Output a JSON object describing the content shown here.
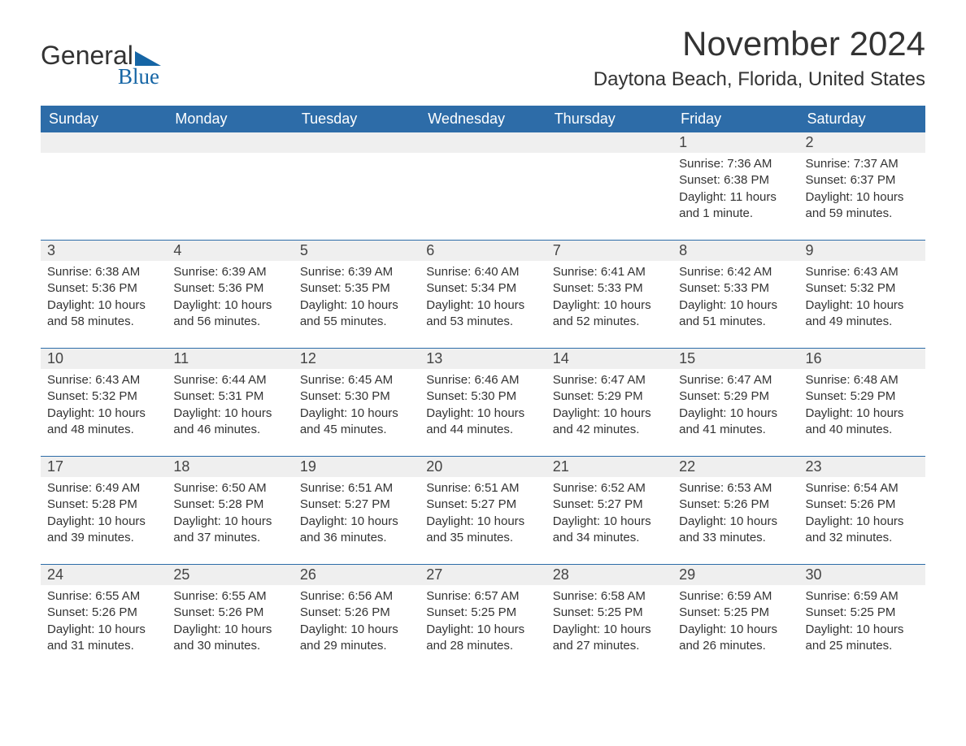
{
  "logo": {
    "word1": "General",
    "word2": "Blue"
  },
  "title": "November 2024",
  "location": "Daytona Beach, Florida, United States",
  "colors": {
    "header_bg": "#2d6ca8",
    "header_text": "#ffffff",
    "daynum_bg": "#efefef",
    "row_border": "#2d6ca8",
    "logo_accent": "#1565a5",
    "body_text": "#333333",
    "page_bg": "#ffffff"
  },
  "typography": {
    "title_fontsize": 42,
    "location_fontsize": 24,
    "dayheader_fontsize": 18,
    "daynum_fontsize": 18,
    "body_fontsize": 15,
    "font_family": "Arial"
  },
  "day_names": [
    "Sunday",
    "Monday",
    "Tuesday",
    "Wednesday",
    "Thursday",
    "Friday",
    "Saturday"
  ],
  "weeks": [
    [
      {
        "num": "",
        "sunrise": "",
        "sunset": "",
        "daylight": ""
      },
      {
        "num": "",
        "sunrise": "",
        "sunset": "",
        "daylight": ""
      },
      {
        "num": "",
        "sunrise": "",
        "sunset": "",
        "daylight": ""
      },
      {
        "num": "",
        "sunrise": "",
        "sunset": "",
        "daylight": ""
      },
      {
        "num": "",
        "sunrise": "",
        "sunset": "",
        "daylight": ""
      },
      {
        "num": "1",
        "sunrise": "Sunrise: 7:36 AM",
        "sunset": "Sunset: 6:38 PM",
        "daylight": "Daylight: 11 hours and 1 minute."
      },
      {
        "num": "2",
        "sunrise": "Sunrise: 7:37 AM",
        "sunset": "Sunset: 6:37 PM",
        "daylight": "Daylight: 10 hours and 59 minutes."
      }
    ],
    [
      {
        "num": "3",
        "sunrise": "Sunrise: 6:38 AM",
        "sunset": "Sunset: 5:36 PM",
        "daylight": "Daylight: 10 hours and 58 minutes."
      },
      {
        "num": "4",
        "sunrise": "Sunrise: 6:39 AM",
        "sunset": "Sunset: 5:36 PM",
        "daylight": "Daylight: 10 hours and 56 minutes."
      },
      {
        "num": "5",
        "sunrise": "Sunrise: 6:39 AM",
        "sunset": "Sunset: 5:35 PM",
        "daylight": "Daylight: 10 hours and 55 minutes."
      },
      {
        "num": "6",
        "sunrise": "Sunrise: 6:40 AM",
        "sunset": "Sunset: 5:34 PM",
        "daylight": "Daylight: 10 hours and 53 minutes."
      },
      {
        "num": "7",
        "sunrise": "Sunrise: 6:41 AM",
        "sunset": "Sunset: 5:33 PM",
        "daylight": "Daylight: 10 hours and 52 minutes."
      },
      {
        "num": "8",
        "sunrise": "Sunrise: 6:42 AM",
        "sunset": "Sunset: 5:33 PM",
        "daylight": "Daylight: 10 hours and 51 minutes."
      },
      {
        "num": "9",
        "sunrise": "Sunrise: 6:43 AM",
        "sunset": "Sunset: 5:32 PM",
        "daylight": "Daylight: 10 hours and 49 minutes."
      }
    ],
    [
      {
        "num": "10",
        "sunrise": "Sunrise: 6:43 AM",
        "sunset": "Sunset: 5:32 PM",
        "daylight": "Daylight: 10 hours and 48 minutes."
      },
      {
        "num": "11",
        "sunrise": "Sunrise: 6:44 AM",
        "sunset": "Sunset: 5:31 PM",
        "daylight": "Daylight: 10 hours and 46 minutes."
      },
      {
        "num": "12",
        "sunrise": "Sunrise: 6:45 AM",
        "sunset": "Sunset: 5:30 PM",
        "daylight": "Daylight: 10 hours and 45 minutes."
      },
      {
        "num": "13",
        "sunrise": "Sunrise: 6:46 AM",
        "sunset": "Sunset: 5:30 PM",
        "daylight": "Daylight: 10 hours and 44 minutes."
      },
      {
        "num": "14",
        "sunrise": "Sunrise: 6:47 AM",
        "sunset": "Sunset: 5:29 PM",
        "daylight": "Daylight: 10 hours and 42 minutes."
      },
      {
        "num": "15",
        "sunrise": "Sunrise: 6:47 AM",
        "sunset": "Sunset: 5:29 PM",
        "daylight": "Daylight: 10 hours and 41 minutes."
      },
      {
        "num": "16",
        "sunrise": "Sunrise: 6:48 AM",
        "sunset": "Sunset: 5:29 PM",
        "daylight": "Daylight: 10 hours and 40 minutes."
      }
    ],
    [
      {
        "num": "17",
        "sunrise": "Sunrise: 6:49 AM",
        "sunset": "Sunset: 5:28 PM",
        "daylight": "Daylight: 10 hours and 39 minutes."
      },
      {
        "num": "18",
        "sunrise": "Sunrise: 6:50 AM",
        "sunset": "Sunset: 5:28 PM",
        "daylight": "Daylight: 10 hours and 37 minutes."
      },
      {
        "num": "19",
        "sunrise": "Sunrise: 6:51 AM",
        "sunset": "Sunset: 5:27 PM",
        "daylight": "Daylight: 10 hours and 36 minutes."
      },
      {
        "num": "20",
        "sunrise": "Sunrise: 6:51 AM",
        "sunset": "Sunset: 5:27 PM",
        "daylight": "Daylight: 10 hours and 35 minutes."
      },
      {
        "num": "21",
        "sunrise": "Sunrise: 6:52 AM",
        "sunset": "Sunset: 5:27 PM",
        "daylight": "Daylight: 10 hours and 34 minutes."
      },
      {
        "num": "22",
        "sunrise": "Sunrise: 6:53 AM",
        "sunset": "Sunset: 5:26 PM",
        "daylight": "Daylight: 10 hours and 33 minutes."
      },
      {
        "num": "23",
        "sunrise": "Sunrise: 6:54 AM",
        "sunset": "Sunset: 5:26 PM",
        "daylight": "Daylight: 10 hours and 32 minutes."
      }
    ],
    [
      {
        "num": "24",
        "sunrise": "Sunrise: 6:55 AM",
        "sunset": "Sunset: 5:26 PM",
        "daylight": "Daylight: 10 hours and 31 minutes."
      },
      {
        "num": "25",
        "sunrise": "Sunrise: 6:55 AM",
        "sunset": "Sunset: 5:26 PM",
        "daylight": "Daylight: 10 hours and 30 minutes."
      },
      {
        "num": "26",
        "sunrise": "Sunrise: 6:56 AM",
        "sunset": "Sunset: 5:26 PM",
        "daylight": "Daylight: 10 hours and 29 minutes."
      },
      {
        "num": "27",
        "sunrise": "Sunrise: 6:57 AM",
        "sunset": "Sunset: 5:25 PM",
        "daylight": "Daylight: 10 hours and 28 minutes."
      },
      {
        "num": "28",
        "sunrise": "Sunrise: 6:58 AM",
        "sunset": "Sunset: 5:25 PM",
        "daylight": "Daylight: 10 hours and 27 minutes."
      },
      {
        "num": "29",
        "sunrise": "Sunrise: 6:59 AM",
        "sunset": "Sunset: 5:25 PM",
        "daylight": "Daylight: 10 hours and 26 minutes."
      },
      {
        "num": "30",
        "sunrise": "Sunrise: 6:59 AM",
        "sunset": "Sunset: 5:25 PM",
        "daylight": "Daylight: 10 hours and 25 minutes."
      }
    ]
  ]
}
